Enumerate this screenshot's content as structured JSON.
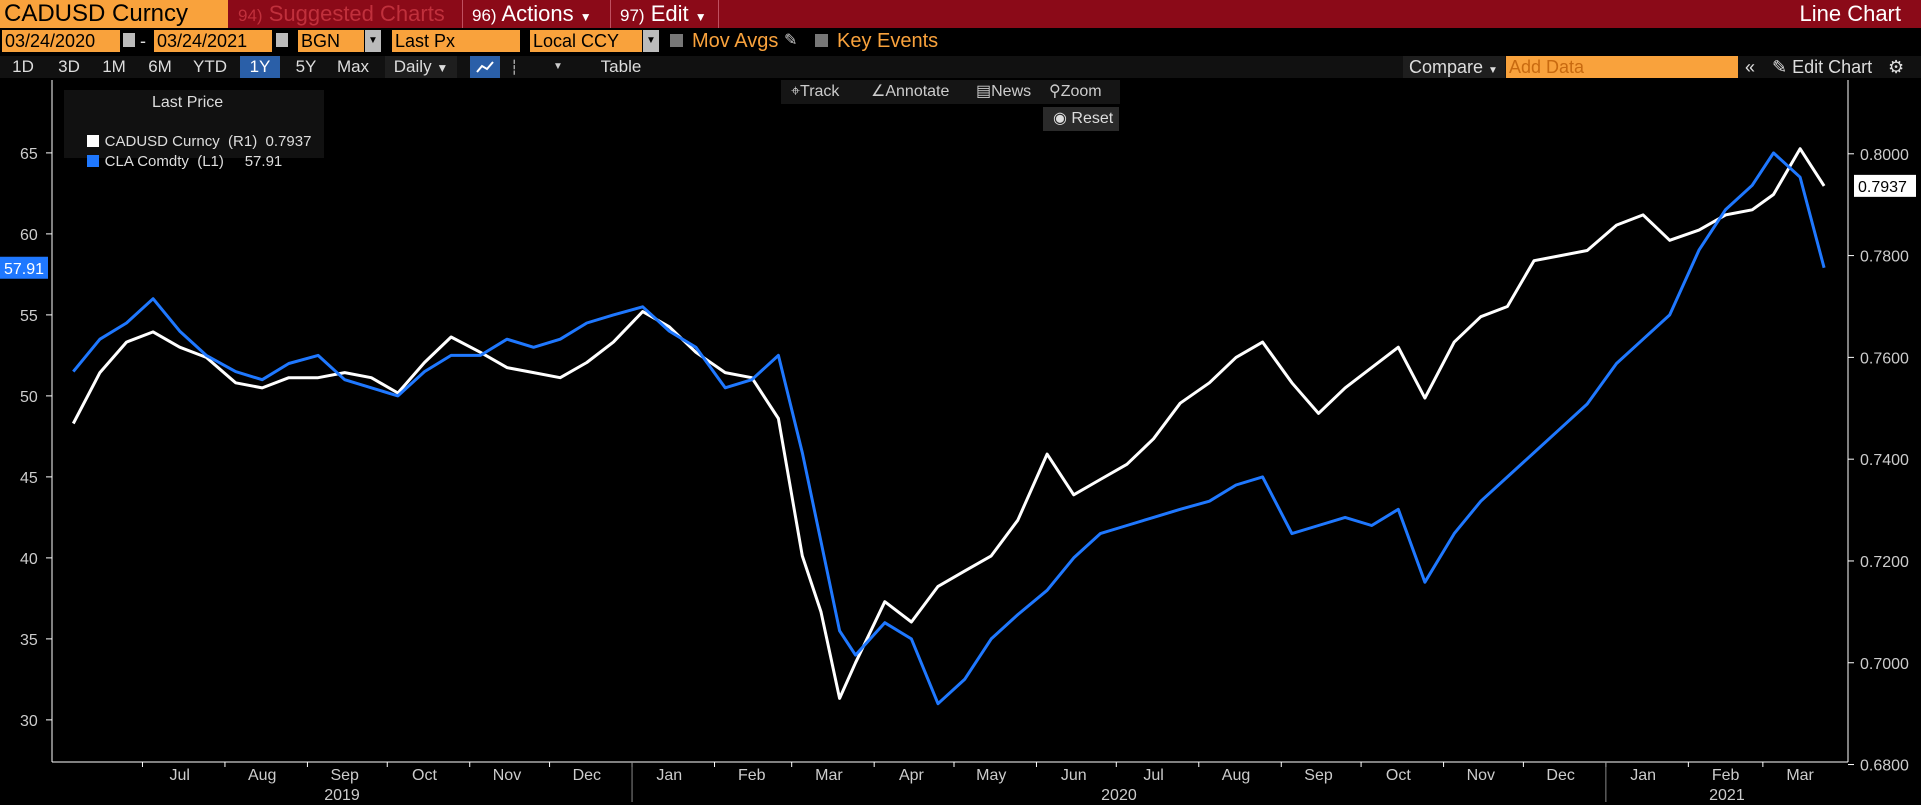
{
  "header": {
    "ticker": "CADUSD Curncy",
    "menu_94": "94)",
    "menu_94_label": "Suggested Charts",
    "menu_96": "96)",
    "menu_96_label": "Actions",
    "menu_97": "97)",
    "menu_97_label": "Edit",
    "chart_type": "Line Chart"
  },
  "controls": {
    "start_date": "03/24/2020",
    "date_sep": "-",
    "end_date": "03/24/2021",
    "source": "BGN",
    "field": "Last Px",
    "currency": "Local CCY",
    "mov_avgs": "Mov Avgs",
    "key_events": "Key Events"
  },
  "periods": [
    "1D",
    "3D",
    "1M",
    "6M",
    "YTD",
    "1Y",
    "5Y",
    "Max"
  ],
  "active_period": "1Y",
  "frequency": "Daily",
  "table_label": "Table",
  "compare_label": "Compare",
  "add_data_placeholder": "Add Data",
  "edit_chart_label": "Edit Chart",
  "tools": {
    "track": "Track",
    "annotate": "Annotate",
    "news": "News",
    "zoom": "Zoom",
    "reset": "Reset"
  },
  "legend": {
    "title": "Last Price",
    "series1": "CADUSD Curncy  (R1)  0.7937",
    "series2": "CLA Comdty  (L1)     57.91"
  },
  "colors": {
    "cadusd": "#ffffff",
    "cla": "#1f78ff",
    "accent": "#f9a23c",
    "header": "#8b0a18"
  },
  "chart_data": {
    "type": "line",
    "title": "",
    "x_months": [
      "Jul",
      "Aug",
      "Sep",
      "Oct",
      "Nov",
      "Dec",
      "Jan",
      "Feb",
      "Mar",
      "Apr",
      "May",
      "Jun",
      "Jul",
      "Aug",
      "Sep",
      "Oct",
      "Nov",
      "Dec",
      "Jan",
      "Feb",
      "Mar"
    ],
    "x_years": [
      "2019",
      "2020",
      "2021"
    ],
    "left_axis": {
      "ticks": [
        "30",
        "35",
        "40",
        "45",
        "50",
        "55",
        "60",
        "65"
      ],
      "ylim": [
        27.4,
        69.5
      ]
    },
    "right_axis": {
      "ticks": [
        "0.6800",
        "0.7000",
        "0.7200",
        "0.7400",
        "0.7600",
        "0.7800",
        "0.8000"
      ],
      "ylim": [
        0.6805,
        0.8145
      ]
    },
    "last_left": "57.91",
    "last_right": "0.7937",
    "series": [
      {
        "name": "CADUSD Curncy",
        "axis": "right",
        "x": [
          "2019-06-05",
          "2019-06-15",
          "2019-06-25",
          "2019-07-05",
          "2019-07-15",
          "2019-07-25",
          "2019-08-05",
          "2019-08-15",
          "2019-08-25",
          "2019-09-05",
          "2019-09-15",
          "2019-09-25",
          "2019-10-05",
          "2019-10-15",
          "2019-10-25",
          "2019-11-05",
          "2019-11-15",
          "2019-11-25",
          "2019-12-05",
          "2019-12-15",
          "2019-12-25",
          "2020-01-05",
          "2020-01-15",
          "2020-01-25",
          "2020-02-05",
          "2020-02-15",
          "2020-02-25",
          "2020-03-05",
          "2020-03-12",
          "2020-03-19",
          "2020-03-25",
          "2020-04-05",
          "2020-04-15",
          "2020-04-25",
          "2020-05-05",
          "2020-05-15",
          "2020-05-25",
          "2020-06-05",
          "2020-06-15",
          "2020-06-25",
          "2020-07-05",
          "2020-07-15",
          "2020-07-25",
          "2020-08-05",
          "2020-08-15",
          "2020-08-25",
          "2020-09-05",
          "2020-09-15",
          "2020-09-25",
          "2020-10-05",
          "2020-10-15",
          "2020-10-25",
          "2020-11-05",
          "2020-11-15",
          "2020-11-25",
          "2020-12-05",
          "2020-12-15",
          "2020-12-25",
          "2021-01-05",
          "2021-01-15",
          "2021-01-25",
          "2021-02-05",
          "2021-02-15",
          "2021-02-25",
          "2021-03-05",
          "2021-03-15",
          "2021-03-24"
        ],
        "y": [
          0.747,
          0.757,
          0.763,
          0.765,
          0.762,
          0.76,
          0.755,
          0.754,
          0.756,
          0.756,
          0.757,
          0.756,
          0.753,
          0.759,
          0.764,
          0.761,
          0.758,
          0.757,
          0.756,
          0.759,
          0.763,
          0.769,
          0.766,
          0.761,
          0.757,
          0.756,
          0.748,
          0.721,
          0.71,
          0.693,
          0.7,
          0.712,
          0.708,
          0.715,
          0.718,
          0.721,
          0.728,
          0.741,
          0.733,
          0.736,
          0.739,
          0.744,
          0.751,
          0.755,
          0.76,
          0.763,
          0.755,
          0.749,
          0.754,
          0.758,
          0.762,
          0.752,
          0.763,
          0.768,
          0.77,
          0.779,
          0.78,
          0.781,
          0.786,
          0.788,
          0.783,
          0.785,
          0.788,
          0.789,
          0.792,
          0.801,
          0.7937
        ]
      },
      {
        "name": "CLA Comdty",
        "axis": "left",
        "x": [
          "2019-06-05",
          "2019-06-15",
          "2019-06-25",
          "2019-07-05",
          "2019-07-15",
          "2019-07-25",
          "2019-08-05",
          "2019-08-15",
          "2019-08-25",
          "2019-09-05",
          "2019-09-15",
          "2019-09-25",
          "2019-10-05",
          "2019-10-15",
          "2019-10-25",
          "2019-11-05",
          "2019-11-15",
          "2019-11-25",
          "2019-12-05",
          "2019-12-15",
          "2019-12-25",
          "2020-01-05",
          "2020-01-15",
          "2020-01-25",
          "2020-02-05",
          "2020-02-15",
          "2020-02-25",
          "2020-03-05",
          "2020-03-12",
          "2020-03-19",
          "2020-03-25",
          "2020-04-05",
          "2020-04-15",
          "2020-04-25",
          "2020-05-05",
          "2020-05-15",
          "2020-05-25",
          "2020-06-05",
          "2020-06-15",
          "2020-06-25",
          "2020-07-05",
          "2020-07-15",
          "2020-07-25",
          "2020-08-05",
          "2020-08-15",
          "2020-08-25",
          "2020-09-05",
          "2020-09-15",
          "2020-09-25",
          "2020-10-05",
          "2020-10-15",
          "2020-10-25",
          "2020-11-05",
          "2020-11-15",
          "2020-11-25",
          "2020-12-05",
          "2020-12-15",
          "2020-12-25",
          "2021-01-05",
          "2021-01-15",
          "2021-01-25",
          "2021-02-05",
          "2021-02-15",
          "2021-02-25",
          "2021-03-05",
          "2021-03-15",
          "2021-03-24"
        ],
        "y": [
          51.5,
          53.5,
          54.5,
          56.0,
          54.0,
          52.5,
          51.5,
          51.0,
          52.0,
          52.5,
          51.0,
          50.5,
          50.0,
          51.5,
          52.5,
          52.5,
          53.5,
          53.0,
          53.5,
          54.5,
          55.0,
          55.5,
          54.0,
          53.0,
          50.5,
          51.0,
          52.5,
          46.5,
          41.0,
          35.5,
          34.0,
          36.0,
          35.0,
          31.0,
          32.5,
          35.0,
          36.5,
          38.0,
          40.0,
          41.5,
          42.0,
          42.5,
          43.0,
          43.5,
          44.5,
          45.0,
          41.5,
          42.0,
          42.5,
          42.0,
          43.0,
          38.5,
          41.5,
          43.5,
          45.0,
          46.5,
          48.0,
          49.5,
          52.0,
          53.5,
          55.0,
          59.0,
          61.5,
          63.0,
          65.0,
          63.5,
          57.91
        ]
      }
    ]
  }
}
